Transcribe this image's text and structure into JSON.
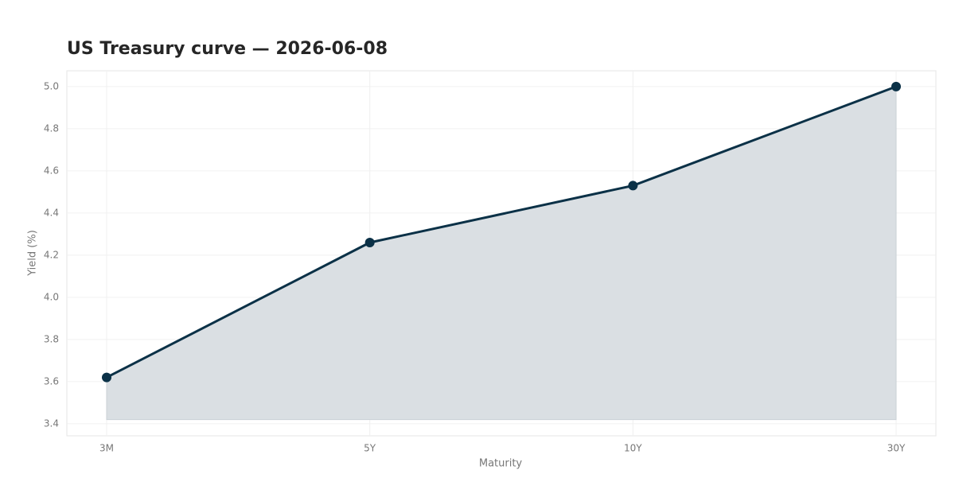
{
  "chart_data": {
    "type": "line",
    "title": "US Treasury curve — 2026-06-08",
    "x_label": "Maturity",
    "y_label": "Yield (%)",
    "categories": [
      "3M",
      "5Y",
      "10Y",
      "30Y"
    ],
    "values": [
      3.62,
      4.26,
      4.53,
      5.0
    ],
    "color": "#0b3147",
    "area_color": "#dadfe3",
    "fill_to": 3.42,
    "ylim": [
      3.343,
      5.075
    ],
    "yticks": [
      3.4,
      3.6,
      3.8,
      {
        "value": 4,
        "label": "4.0"
      },
      4.2,
      4.4,
      4.6,
      4.8,
      {
        "value": 5,
        "label": "5.0"
      }
    ],
    "grid": true
  }
}
